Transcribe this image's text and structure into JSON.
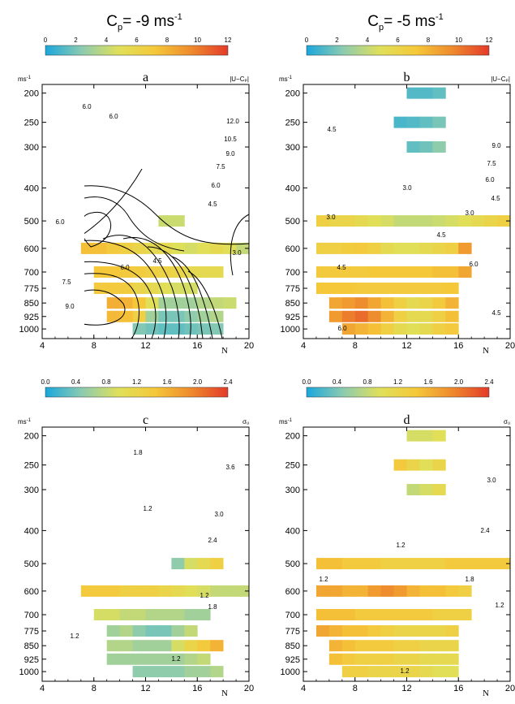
{
  "header": {
    "left": {
      "base": "C",
      "sub": "p",
      "rest": "= -9 ms",
      "sup": "-1"
    },
    "right": {
      "base": "C",
      "sub": "p",
      "rest": "= -5 ms",
      "sup": "-1"
    }
  },
  "colorbars": {
    "top": {
      "ticks": [
        "0",
        "2",
        "4",
        "6",
        "8",
        "10",
        "12"
      ],
      "range": [
        0,
        12
      ]
    },
    "bottom": {
      "ticks": [
        "0.0",
        "0.4",
        "0.8",
        "1.2",
        "1.6",
        "2.0",
        "2.4"
      ],
      "range": [
        0,
        2.4
      ]
    },
    "stops": [
      "#1aa7dc",
      "#8ccbb0",
      "#dfe05a",
      "#f5c83a",
      "#ee8a2d",
      "#e43a2a"
    ]
  },
  "axis": {
    "unit": "ms",
    "unit_sup": "-1",
    "xlabel": "N",
    "xticks": [
      "4",
      "8",
      "12",
      "16",
      "20"
    ],
    "yticks": [
      "200",
      "250",
      "300",
      "400",
      "500",
      "600",
      "700",
      "775",
      "850",
      "925",
      "1000"
    ]
  },
  "chart_data": [
    {
      "id": "a",
      "type": "heatmap",
      "title": "a",
      "corner_label": "|U−Cₚ|",
      "xlim": [
        4,
        20
      ],
      "ylim": [
        1000,
        200
      ],
      "color_range": [
        0,
        12
      ],
      "contour_labels": [
        "6.0",
        "6.0",
        "12.0",
        "10.5",
        "9.0",
        "7.5",
        "6.0",
        "4.5",
        "6.0",
        "3.0",
        "6.0",
        "4.5",
        "7.5",
        "9.0"
      ],
      "rows": [
        {
          "p": 500,
          "x0": 13,
          "cells": [
            4.2,
            4.2
          ]
        },
        {
          "p": 600,
          "x0": 7,
          "cells": [
            7.5,
            7.5,
            7.0,
            6.5,
            6.0,
            5.5,
            5.5,
            4.8,
            4.5,
            5.0,
            5.5,
            5.0,
            4.0
          ]
        },
        {
          "p": 700,
          "x0": 8,
          "cells": [
            7.2,
            7.2,
            7.0,
            6.8,
            6.5,
            6.2,
            6.0,
            5.5,
            5.5,
            5.5
          ]
        },
        {
          "p": 775,
          "x0": 8,
          "cells": [
            7.0,
            7.0,
            6.8,
            6.0,
            5.5,
            5.0,
            4.5,
            4.5
          ]
        },
        {
          "p": 850,
          "x0": 9,
          "cells": [
            8.2,
            8.0,
            7.2,
            5.0,
            3.0,
            3.0,
            3.0,
            3.5,
            4.0,
            4.2
          ]
        },
        {
          "p": 925,
          "x0": 9,
          "cells": [
            7.8,
            7.5,
            6.5,
            3.0,
            2.0,
            2.0,
            2.5,
            3.0,
            3.5
          ]
        },
        {
          "p": 1000,
          "x0": 11,
          "cells": [
            2.2,
            1.8,
            1.5,
            1.5,
            1.8,
            2.0,
            2.2
          ]
        }
      ]
    },
    {
      "id": "b",
      "type": "heatmap",
      "title": "b",
      "corner_label": "|U−Cₚ|",
      "xlim": [
        4,
        20
      ],
      "ylim": [
        1000,
        200
      ],
      "color_range": [
        0,
        12
      ],
      "contour_labels": [
        "4.5",
        "9.0",
        "7.5",
        "6.0",
        "4.5",
        "3.0",
        "3.0",
        "3.0",
        "4.5",
        "4.5",
        "6.0",
        "6.0",
        "4.5"
      ],
      "rows": [
        {
          "p": 200,
          "x0": 12,
          "cells": [
            1.2,
            1.2,
            1.5
          ]
        },
        {
          "p": 250,
          "x0": 11,
          "cells": [
            1.0,
            1.2,
            1.5,
            2.0
          ]
        },
        {
          "p": 300,
          "x0": 12,
          "cells": [
            1.5,
            1.8,
            2.5
          ]
        },
        {
          "p": 500,
          "x0": 5,
          "cells": [
            6.5,
            6.0,
            6.0,
            5.5,
            5.0,
            4.5,
            4.0,
            4.0,
            4.0,
            4.2,
            4.5,
            5.0,
            5.5,
            6.0,
            6.5,
            6.5
          ]
        },
        {
          "p": 600,
          "x0": 5,
          "cells": [
            6.5,
            6.5,
            6.8,
            7.0,
            6.5,
            5.5,
            5.0,
            5.0,
            5.5,
            6.0,
            6.5,
            9.0
          ]
        },
        {
          "p": 700,
          "x0": 5,
          "cells": [
            7.0,
            7.0,
            7.0,
            7.0,
            7.2,
            7.2,
            7.2,
            7.2,
            7.2,
            7.5,
            7.5,
            8.5
          ]
        },
        {
          "p": 775,
          "x0": 5,
          "cells": [
            7.2,
            7.2,
            7.2,
            7.0,
            7.0,
            7.0,
            7.0,
            7.0,
            7.0,
            7.0,
            7.2
          ]
        },
        {
          "p": 850,
          "x0": 6,
          "cells": [
            8.5,
            9.0,
            9.5,
            8.5,
            7.5,
            6.5,
            5.5,
            6.0,
            7.0,
            8.0
          ]
        },
        {
          "p": 925,
          "x0": 6,
          "cells": [
            9.0,
            10.0,
            10.5,
            9.5,
            8.0,
            6.5,
            5.5,
            5.5,
            6.5,
            7.5
          ]
        },
        {
          "p": 1000,
          "x0": 7,
          "cells": [
            8.5,
            8.0,
            7.5,
            6.5,
            5.5,
            5.0,
            5.5,
            6.5,
            7.0
          ]
        }
      ]
    },
    {
      "id": "c",
      "type": "heatmap",
      "title": "c",
      "corner_label": "σᵤ",
      "xlim": [
        4,
        20
      ],
      "ylim": [
        1000,
        200
      ],
      "color_range": [
        0,
        2.4
      ],
      "contour_labels": [
        "1.8",
        "3.6",
        "3.0",
        "2.4",
        "1.2",
        "1.8",
        "1.2",
        "1.2",
        "1.2"
      ],
      "rows": [
        {
          "p": 500,
          "x0": 14,
          "cells": [
            0.5,
            0.9,
            1.1,
            1.3
          ]
        },
        {
          "p": 600,
          "x0": 7,
          "cells": [
            1.4,
            1.4,
            1.4,
            1.3,
            1.3,
            1.3,
            1.2,
            1.1,
            1.0,
            0.9,
            0.8,
            0.8,
            0.8
          ]
        },
        {
          "p": 700,
          "x0": 8,
          "cells": [
            0.9,
            0.9,
            0.8,
            0.8,
            0.7,
            0.7,
            0.7,
            0.6,
            0.6
          ]
        },
        {
          "p": 775,
          "x0": 9,
          "cells": [
            0.6,
            0.7,
            0.5,
            0.4,
            0.4,
            0.6,
            0.8
          ]
        },
        {
          "p": 850,
          "x0": 9,
          "cells": [
            0.7,
            0.7,
            0.6,
            0.6,
            0.6,
            0.9,
            1.2,
            1.4,
            1.6
          ]
        },
        {
          "p": 925,
          "x0": 9,
          "cells": [
            0.6,
            0.6,
            0.6,
            0.6,
            0.6,
            0.6,
            0.7,
            0.8
          ]
        },
        {
          "p": 1000,
          "x0": 11,
          "cells": [
            0.5,
            0.5,
            0.5,
            0.5,
            0.6,
            0.6,
            0.7
          ]
        }
      ]
    },
    {
      "id": "d",
      "type": "heatmap",
      "title": "d",
      "corner_label": "σᵤ",
      "xlim": [
        4,
        20
      ],
      "ylim": [
        1000,
        200
      ],
      "color_range": [
        0,
        2.4
      ],
      "contour_labels": [
        "3.0",
        "2.4",
        "1.2",
        "1.8",
        "1.2",
        "1.2",
        "1.2"
      ],
      "rows": [
        {
          "p": 200,
          "x0": 12,
          "cells": [
            0.9,
            0.9,
            1.0
          ]
        },
        {
          "p": 250,
          "x0": 11,
          "cells": [
            1.4,
            1.2,
            1.0,
            1.2
          ]
        },
        {
          "p": 300,
          "x0": 12,
          "cells": [
            0.8,
            0.9,
            1.1
          ]
        },
        {
          "p": 500,
          "x0": 5,
          "cells": [
            1.5,
            1.5,
            1.4,
            1.4,
            1.4,
            1.3,
            1.3,
            1.3,
            1.3,
            1.3,
            1.4,
            1.4,
            1.4,
            1.4,
            1.4,
            1.4
          ]
        },
        {
          "p": 600,
          "x0": 5,
          "cells": [
            1.7,
            1.7,
            1.6,
            1.6,
            1.8,
            1.9,
            1.8,
            1.6,
            1.5,
            1.5,
            1.4,
            1.3
          ]
        },
        {
          "p": 700,
          "x0": 5,
          "cells": [
            1.5,
            1.5,
            1.5,
            1.4,
            1.4,
            1.4,
            1.4,
            1.4,
            1.4,
            1.3,
            1.3,
            1.3
          ]
        },
        {
          "p": 775,
          "x0": 5,
          "cells": [
            1.7,
            1.6,
            1.5,
            1.5,
            1.4,
            1.3,
            1.2,
            1.2,
            1.2,
            1.2,
            1.3
          ]
        },
        {
          "p": 850,
          "x0": 6,
          "cells": [
            1.6,
            1.5,
            1.4,
            1.4,
            1.4,
            1.3,
            1.3,
            1.2,
            1.2,
            1.2
          ]
        },
        {
          "p": 925,
          "x0": 6,
          "cells": [
            1.5,
            1.4,
            1.3,
            1.3,
            1.3,
            1.2,
            1.2,
            1.1,
            1.1,
            1.1
          ]
        },
        {
          "p": 1000,
          "x0": 7,
          "cells": [
            1.3,
            1.3,
            1.2,
            1.2,
            1.2,
            1.2,
            1.1,
            1.0,
            1.0
          ]
        }
      ]
    }
  ]
}
